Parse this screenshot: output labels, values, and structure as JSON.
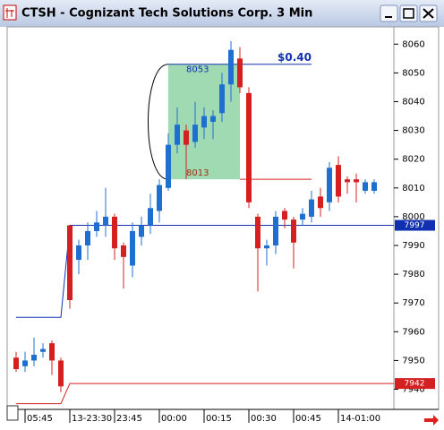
{
  "window": {
    "title": "CTSH - Cognizant Tech Solutions Corp. 3 Min"
  },
  "chart_data": {
    "type": "candlestick",
    "open": [
      7951,
      7948,
      7950,
      7953,
      7956,
      7950,
      7997,
      7985,
      7990,
      7995,
      7997,
      8000,
      7990,
      7983,
      7993,
      7997,
      8002,
      8010,
      8025,
      8030,
      8026,
      8031,
      8033,
      8036,
      8046,
      8055,
      8043,
      8000,
      7989,
      7990,
      8002,
      7999,
      7999,
      8000,
      8007,
      8005,
      8018,
      8013,
      8013,
      8009,
      8009
    ],
    "high": [
      7953,
      7953,
      7958,
      7956,
      7957,
      7951,
      7997,
      7992,
      7998,
      8002,
      8010,
      8001,
      7991,
      7998,
      8000,
      8008,
      8013,
      8029,
      8038,
      8032,
      8040,
      8038,
      8037,
      8050,
      8061,
      8059,
      8045,
      8001,
      7992,
      8002,
      8003,
      8000,
      8003,
      8009,
      8010,
      8019,
      8021,
      8014,
      8015,
      8013,
      8013
    ],
    "low": [
      7946,
      7946,
      7948,
      7951,
      7945,
      7939,
      7968,
      7980,
      7985,
      7993,
      7993,
      7985,
      7975,
      7979,
      7990,
      7994,
      7998,
      8009,
      8022,
      8013,
      8024,
      8027,
      8027,
      8033,
      8040,
      8043,
      8003,
      7974,
      7983,
      7987,
      7996,
      7982,
      7997,
      7998,
      8000,
      8002,
      8005,
      8008,
      8005,
      8008,
      8008
    ],
    "close": [
      7947,
      7950,
      7952,
      7954,
      7950,
      7941,
      7971,
      7990,
      7995,
      7998,
      8000,
      7989,
      7986,
      7995,
      7997,
      8003,
      8011,
      8025,
      8032,
      8025,
      8032,
      8035,
      8035,
      8046,
      8058,
      8045,
      8005,
      7989,
      7990,
      8000,
      7999,
      7991,
      8001,
      8006,
      8003,
      8017,
      8007,
      8012,
      8012,
      8012,
      8012
    ],
    "up_color": "#1f6fd0",
    "down_color": "#d42020",
    "xticks": [
      {
        "value": 1,
        "label": "05:45"
      },
      {
        "value": 6,
        "label": "13-23:30"
      },
      {
        "value": 11,
        "label": "23:45"
      },
      {
        "value": 16,
        "label": "00:00"
      },
      {
        "value": 21,
        "label": "00:15"
      },
      {
        "value": 26,
        "label": "00:30"
      },
      {
        "value": 31,
        "label": "00:45"
      },
      {
        "value": 36,
        "label": "14-01:00"
      }
    ],
    "ylim": [
      7933,
      8066
    ],
    "yticks": [
      7940,
      7950,
      7960,
      7970,
      7980,
      7990,
      8000,
      8010,
      8020,
      8030,
      8040,
      8050,
      8060
    ],
    "series": [
      {
        "color": "#1030b0",
        "values": [
          7965,
          7965,
          7965,
          7965,
          7965,
          7965,
          7997,
          7997,
          7997,
          7997,
          7997,
          7997,
          7997,
          7997,
          7997,
          7997,
          7997,
          7997,
          7997,
          7997,
          7997,
          7997,
          7997,
          7997,
          7997,
          7997,
          7997,
          7997,
          7997,
          7997,
          7997,
          7997,
          7997,
          7997,
          7997,
          7997,
          7997,
          7997,
          7997,
          7997,
          7997
        ]
      },
      {
        "color": "#d42020",
        "values": [
          7935,
          7935,
          7935,
          7935,
          7935,
          7935,
          7942,
          7942,
          7942,
          7942,
          7942,
          7942,
          7942,
          7942,
          7942,
          7942,
          7942,
          7942,
          7942,
          7942,
          7942,
          7942,
          7942,
          7942,
          7942,
          7942,
          7942,
          7942,
          7942,
          7942,
          7942,
          7942,
          7942,
          7942,
          7942,
          7942,
          7942,
          7942,
          7942,
          7942,
          7942
        ]
      }
    ],
    "annotation": {
      "high": 8053,
      "low": 8013,
      "change": "$0.40"
    }
  }
}
